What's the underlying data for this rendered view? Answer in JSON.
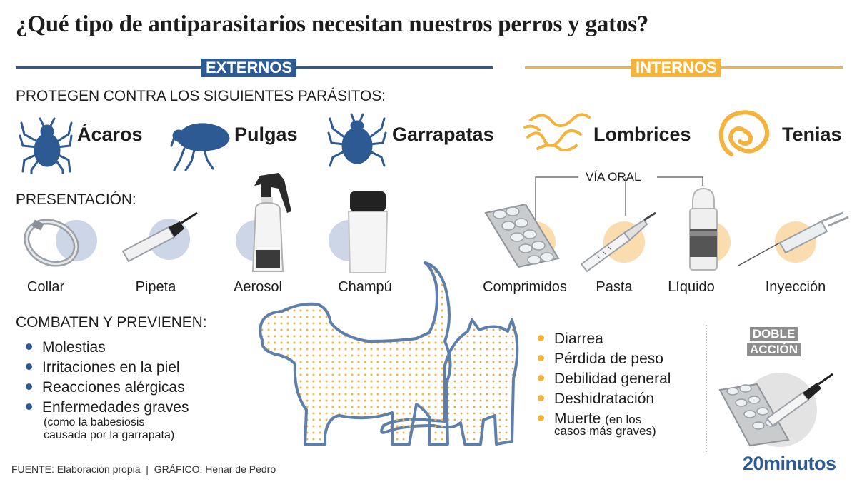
{
  "title": "¿Qué tipo de antiparasitarios necesitan nuestros perros y gatos?",
  "headers": {
    "externos": "EXTERNOS",
    "internos": "INTERNOS"
  },
  "protect_label": "PROTEGEN CONTRA LOS SIGUIENTES PARÁSITOS:",
  "parasites": [
    {
      "label": "Ácaros",
      "icon": "mite-icon"
    },
    {
      "label": "Pulgas",
      "icon": "flea-icon"
    },
    {
      "label": "Garrapatas",
      "icon": "tick-icon"
    },
    {
      "label": "Lombrices",
      "icon": "roundworm-icon"
    },
    {
      "label": "Tenias",
      "icon": "tapeworm-icon"
    }
  ],
  "presentation_label": "PRESENTACIÓN:",
  "oral_label": "VÍA ORAL",
  "products": [
    {
      "label": "Collar",
      "icon": "collar-icon"
    },
    {
      "label": "Pipeta",
      "icon": "pipette-icon"
    },
    {
      "label": "Aerosol",
      "icon": "spray-bottle-icon"
    },
    {
      "label": "Champú",
      "icon": "shampoo-bottle-icon"
    },
    {
      "label": "Comprimidos",
      "icon": "tablets-icon"
    },
    {
      "label": "Pasta",
      "icon": "paste-syringe-icon"
    },
    {
      "label": "Líquido",
      "icon": "dropper-bottle-icon"
    },
    {
      "label": "Inyección",
      "icon": "syringe-icon"
    }
  ],
  "combat_label": "COMBATEN Y PREVIENEN:",
  "external_effects": [
    "Molestias",
    "Irritaciones en la piel",
    "Reacciones alérgicas",
    "Enfermedades graves"
  ],
  "external_note_1": "(como la babesiosis",
  "external_note_2": "causada por la garrapata)",
  "internal_effects": [
    "Diarrea",
    "Pérdida de peso",
    "Debilidad general",
    "Deshidratación",
    "Muerte"
  ],
  "internal_note_1": "(en los",
  "internal_note_2": "casos más graves)",
  "doble_1": "DOBLE",
  "doble_2": "ACCIÓN",
  "footer": "FUENTE: Elaboración propia  |  GRÁFICO: Henar de Pedro",
  "logo": "20minutos",
  "colors": {
    "blue": "#2d5a93",
    "orange": "#f3b33d",
    "light_blue": "#ccd6e6",
    "light_orange": "#fbdcae",
    "dog_outline": "#5d7fa9"
  }
}
